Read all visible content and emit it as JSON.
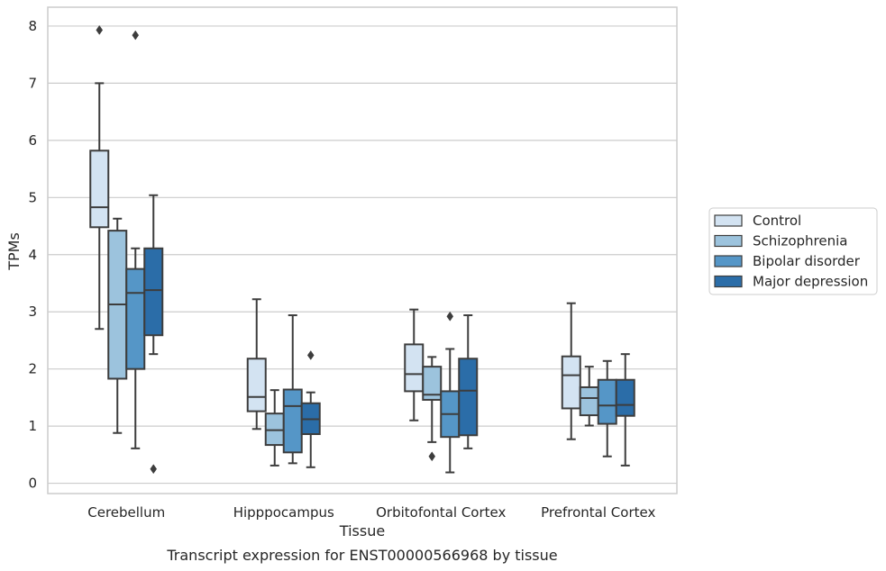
{
  "chart_data": {
    "type": "box",
    "categories": [
      "Cerebellum",
      "Hipppocampus",
      "Orbitofontal Cortex",
      "Prefrontal Cortex"
    ],
    "xlabel": "Tissue",
    "ylabel": "TPMs",
    "ylim": [
      -0.18,
      8.33
    ],
    "yticks": [
      0,
      1,
      2,
      3,
      4,
      5,
      6,
      7,
      8
    ],
    "grid": "horizontal",
    "legend_placement": "right",
    "series": [
      {
        "name": "Control",
        "color": "#d3e3f2",
        "boxes": [
          {
            "whisker_low": 2.7,
            "q1": 4.48,
            "median": 4.83,
            "q3": 5.82,
            "whisker_high": 7.0,
            "outliers": [
              7.93
            ]
          },
          {
            "whisker_low": 0.95,
            "q1": 1.26,
            "median": 1.51,
            "q3": 2.18,
            "whisker_high": 3.22,
            "outliers": []
          },
          {
            "whisker_low": 1.1,
            "q1": 1.61,
            "median": 1.91,
            "q3": 2.43,
            "whisker_high": 3.04,
            "outliers": []
          },
          {
            "whisker_low": 0.77,
            "q1": 1.31,
            "median": 1.89,
            "q3": 2.22,
            "whisker_high": 3.15,
            "outliers": []
          }
        ]
      },
      {
        "name": "Schizophrenia",
        "color": "#9cc3dd",
        "boxes": [
          {
            "whisker_low": 0.88,
            "q1": 1.83,
            "median": 3.13,
            "q3": 4.42,
            "whisker_high": 4.63,
            "outliers": []
          },
          {
            "whisker_low": 0.31,
            "q1": 0.67,
            "median": 0.93,
            "q3": 1.22,
            "whisker_high": 1.63,
            "outliers": []
          },
          {
            "whisker_low": 0.72,
            "q1": 1.46,
            "median": 1.55,
            "q3": 2.04,
            "whisker_high": 2.21,
            "outliers": [
              0.47
            ]
          },
          {
            "whisker_low": 1.01,
            "q1": 1.19,
            "median": 1.49,
            "q3": 1.68,
            "whisker_high": 2.04,
            "outliers": []
          }
        ]
      },
      {
        "name": "Bipolar disorder",
        "color": "#5596c7",
        "boxes": [
          {
            "whisker_low": 0.61,
            "q1": 2.0,
            "median": 3.33,
            "q3": 3.75,
            "whisker_high": 4.11,
            "outliers": [
              7.84
            ]
          },
          {
            "whisker_low": 0.35,
            "q1": 0.54,
            "median": 1.35,
            "q3": 1.64,
            "whisker_high": 2.94,
            "outliers": []
          },
          {
            "whisker_low": 0.19,
            "q1": 0.81,
            "median": 1.21,
            "q3": 1.61,
            "whisker_high": 2.35,
            "outliers": [
              2.92
            ]
          },
          {
            "whisker_low": 0.47,
            "q1": 1.04,
            "median": 1.36,
            "q3": 1.81,
            "whisker_high": 2.14,
            "outliers": []
          }
        ]
      },
      {
        "name": "Major depression",
        "color": "#2b6da8",
        "boxes": [
          {
            "whisker_low": 2.26,
            "q1": 2.59,
            "median": 3.38,
            "q3": 4.11,
            "whisker_high": 5.04,
            "outliers": [
              0.25
            ]
          },
          {
            "whisker_low": 0.28,
            "q1": 0.86,
            "median": 1.12,
            "q3": 1.4,
            "whisker_high": 1.59,
            "outliers": [
              2.24
            ]
          },
          {
            "whisker_low": 0.61,
            "q1": 0.84,
            "median": 1.62,
            "q3": 2.18,
            "whisker_high": 2.94,
            "outliers": []
          },
          {
            "whisker_low": 0.31,
            "q1": 1.18,
            "median": 1.37,
            "q3": 1.81,
            "whisker_high": 2.26,
            "outliers": []
          }
        ]
      }
    ]
  },
  "caption": "Transcript expression for ENST00000566968 by tissue"
}
